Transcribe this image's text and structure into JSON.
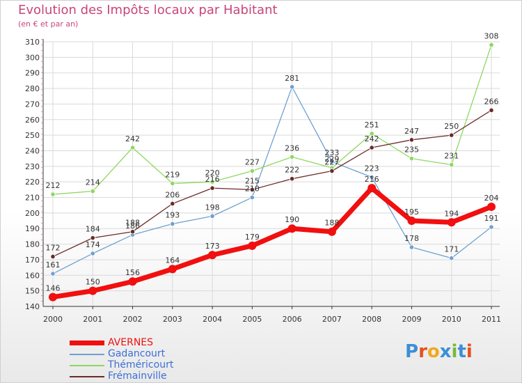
{
  "header": {
    "title": "Evolution des Impôts locaux par Habitant",
    "subtitle": "(en € et par an)"
  },
  "brand": {
    "name": "Proxiti",
    "letters": [
      "P",
      "r",
      "o",
      "x",
      "i",
      "t",
      "i"
    ],
    "letter_colors": [
      "#3b8fd6",
      "#e6501f",
      "#f0a81e",
      "#3b8fd6",
      "#7ab83a",
      "#3b8fd6",
      "#e6501f"
    ]
  },
  "colors": {
    "title": "#c8457a",
    "axis": "#333333",
    "grid": "#d9d9d9",
    "axis_marker": "#e03030"
  },
  "chart_data": {
    "type": "line",
    "title": "Evolution des Impôts locaux par Habitant",
    "subtitle": "(en € et par an)",
    "xlabel": "",
    "ylabel": "",
    "ylim": [
      140,
      310
    ],
    "y_ticks": [
      140,
      150,
      160,
      170,
      180,
      190,
      200,
      210,
      220,
      230,
      240,
      250,
      260,
      270,
      280,
      290,
      300,
      310
    ],
    "categories": [
      "2000",
      "2001",
      "2002",
      "2003",
      "2004",
      "2005",
      "2006",
      "2007",
      "2008",
      "2009",
      "2010",
      "2011"
    ],
    "grid": true,
    "legend_position": "bottom-left",
    "series": [
      {
        "name": "AVERNES",
        "color": "#f10f0f",
        "legend_color": "#f10f0f",
        "bold": true,
        "values": [
          146,
          150,
          156,
          164,
          173,
          179,
          190,
          188,
          216,
          195,
          194,
          204
        ],
        "labels": [
          "146",
          "150",
          "156",
          "164",
          "173",
          "179",
          "190",
          "188",
          "216",
          "195",
          "194",
          "204"
        ]
      },
      {
        "name": "Gadancourt",
        "color": "#6fa0d0",
        "legend_color": "#3b6fd6",
        "bold": false,
        "values": [
          161,
          174,
          186,
          193,
          198,
          210,
          281,
          233,
          223,
          178,
          171,
          191
        ],
        "labels": [
          "161",
          "174",
          "186",
          "193",
          "198",
          "210",
          "281",
          "233",
          "223",
          "178",
          "171",
          "191"
        ]
      },
      {
        "name": "Théméricourt",
        "color": "#8fd760",
        "legend_color": "#3b6fd6",
        "bold": false,
        "values": [
          212,
          214,
          242,
          219,
          220,
          227,
          236,
          229,
          251,
          235,
          231,
          308
        ],
        "labels": [
          "212",
          "214",
          "242",
          "219",
          "220",
          "227",
          "236",
          "229",
          "251",
          "235",
          "231",
          "308"
        ]
      },
      {
        "name": "Frémainville",
        "color": "#6b2a2a",
        "legend_color": "#3b6fd6",
        "bold": false,
        "values": [
          172,
          184,
          188,
          206,
          216,
          215,
          222,
          227,
          242,
          247,
          250,
          266
        ],
        "labels": [
          "172",
          "184",
          "188",
          "206",
          "216",
          "215",
          "222",
          "227",
          "242",
          "247",
          "250",
          "266"
        ]
      }
    ]
  }
}
